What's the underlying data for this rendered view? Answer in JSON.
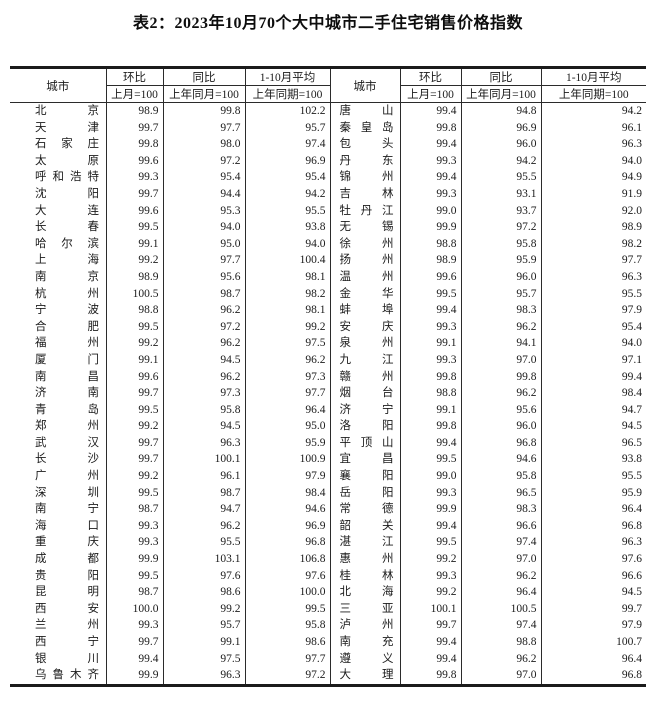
{
  "title": "表2：2023年10月70个大中城市二手住宅销售价格指数",
  "header": {
    "city": "城市",
    "mom": "环比",
    "yoy": "同比",
    "avg": "1-10月平均",
    "mom_base": "上月=100",
    "yoy_base": "上年同月=100",
    "avg_base": "上年同期=100"
  },
  "left_rows": [
    {
      "city": "北京",
      "mom": "98.9",
      "yoy": "99.8",
      "avg": "102.2"
    },
    {
      "city": "天津",
      "mom": "99.7",
      "yoy": "97.7",
      "avg": "95.7"
    },
    {
      "city": "石家庄",
      "mom": "99.8",
      "yoy": "98.0",
      "avg": "97.4"
    },
    {
      "city": "太原",
      "mom": "99.6",
      "yoy": "97.2",
      "avg": "96.9"
    },
    {
      "city": "呼和浩特",
      "mom": "99.3",
      "yoy": "95.4",
      "avg": "95.4"
    },
    {
      "city": "沈阳",
      "mom": "99.7",
      "yoy": "94.4",
      "avg": "94.2"
    },
    {
      "city": "大连",
      "mom": "99.6",
      "yoy": "95.3",
      "avg": "95.5"
    },
    {
      "city": "长春",
      "mom": "99.5",
      "yoy": "94.0",
      "avg": "93.8"
    },
    {
      "city": "哈尔滨",
      "mom": "99.1",
      "yoy": "95.0",
      "avg": "94.0"
    },
    {
      "city": "上海",
      "mom": "99.2",
      "yoy": "97.7",
      "avg": "100.4"
    },
    {
      "city": "南京",
      "mom": "98.9",
      "yoy": "95.6",
      "avg": "98.1"
    },
    {
      "city": "杭州",
      "mom": "100.5",
      "yoy": "98.7",
      "avg": "98.2"
    },
    {
      "city": "宁波",
      "mom": "98.8",
      "yoy": "96.2",
      "avg": "98.1"
    },
    {
      "city": "合肥",
      "mom": "99.5",
      "yoy": "97.2",
      "avg": "99.2"
    },
    {
      "city": "福州",
      "mom": "99.2",
      "yoy": "96.2",
      "avg": "97.5"
    },
    {
      "city": "厦门",
      "mom": "99.1",
      "yoy": "94.5",
      "avg": "96.2"
    },
    {
      "city": "南昌",
      "mom": "99.6",
      "yoy": "96.2",
      "avg": "97.3"
    },
    {
      "city": "济南",
      "mom": "99.7",
      "yoy": "97.3",
      "avg": "97.7"
    },
    {
      "city": "青岛",
      "mom": "99.5",
      "yoy": "95.8",
      "avg": "96.4"
    },
    {
      "city": "郑州",
      "mom": "99.2",
      "yoy": "94.5",
      "avg": "95.0"
    },
    {
      "city": "武汉",
      "mom": "99.7",
      "yoy": "96.3",
      "avg": "95.9"
    },
    {
      "city": "长沙",
      "mom": "99.7",
      "yoy": "100.1",
      "avg": "100.9"
    },
    {
      "city": "广州",
      "mom": "99.2",
      "yoy": "96.1",
      "avg": "97.9"
    },
    {
      "city": "深圳",
      "mom": "99.5",
      "yoy": "98.7",
      "avg": "98.4"
    },
    {
      "city": "南宁",
      "mom": "98.7",
      "yoy": "94.7",
      "avg": "94.6"
    },
    {
      "city": "海口",
      "mom": "99.3",
      "yoy": "96.2",
      "avg": "96.9"
    },
    {
      "city": "重庆",
      "mom": "99.3",
      "yoy": "95.5",
      "avg": "96.8"
    },
    {
      "city": "成都",
      "mom": "99.9",
      "yoy": "103.1",
      "avg": "106.8"
    },
    {
      "city": "贵阳",
      "mom": "99.5",
      "yoy": "97.6",
      "avg": "97.6"
    },
    {
      "city": "昆明",
      "mom": "98.7",
      "yoy": "98.6",
      "avg": "100.0"
    },
    {
      "city": "西安",
      "mom": "100.0",
      "yoy": "99.2",
      "avg": "99.5"
    },
    {
      "city": "兰州",
      "mom": "99.3",
      "yoy": "95.7",
      "avg": "95.8"
    },
    {
      "city": "西宁",
      "mom": "99.7",
      "yoy": "99.1",
      "avg": "98.6"
    },
    {
      "city": "银川",
      "mom": "99.4",
      "yoy": "97.5",
      "avg": "97.7"
    },
    {
      "city": "乌鲁木齐",
      "mom": "99.9",
      "yoy": "96.3",
      "avg": "97.2"
    }
  ],
  "right_rows": [
    {
      "city": "唐山",
      "mom": "99.4",
      "yoy": "94.8",
      "avg": "94.2"
    },
    {
      "city": "秦皇岛",
      "mom": "99.8",
      "yoy": "96.9",
      "avg": "96.1"
    },
    {
      "city": "包头",
      "mom": "99.4",
      "yoy": "96.0",
      "avg": "96.3"
    },
    {
      "city": "丹东",
      "mom": "99.3",
      "yoy": "94.2",
      "avg": "94.0"
    },
    {
      "city": "锦州",
      "mom": "99.4",
      "yoy": "95.5",
      "avg": "94.9"
    },
    {
      "city": "吉林",
      "mom": "99.3",
      "yoy": "93.1",
      "avg": "91.9"
    },
    {
      "city": "牡丹江",
      "mom": "99.0",
      "yoy": "93.7",
      "avg": "92.0"
    },
    {
      "city": "无锡",
      "mom": "99.9",
      "yoy": "97.2",
      "avg": "98.9"
    },
    {
      "city": "徐州",
      "mom": "98.8",
      "yoy": "95.8",
      "avg": "98.2"
    },
    {
      "city": "扬州",
      "mom": "98.9",
      "yoy": "95.9",
      "avg": "97.7"
    },
    {
      "city": "温州",
      "mom": "99.6",
      "yoy": "96.0",
      "avg": "96.3"
    },
    {
      "city": "金华",
      "mom": "99.5",
      "yoy": "95.7",
      "avg": "95.5"
    },
    {
      "city": "蚌埠",
      "mom": "99.4",
      "yoy": "98.3",
      "avg": "97.9"
    },
    {
      "city": "安庆",
      "mom": "99.3",
      "yoy": "96.2",
      "avg": "95.4"
    },
    {
      "city": "泉州",
      "mom": "99.1",
      "yoy": "94.1",
      "avg": "94.0"
    },
    {
      "city": "九江",
      "mom": "99.3",
      "yoy": "97.0",
      "avg": "97.1"
    },
    {
      "city": "赣州",
      "mom": "99.8",
      "yoy": "99.8",
      "avg": "99.4"
    },
    {
      "city": "烟台",
      "mom": "98.8",
      "yoy": "96.2",
      "avg": "98.4"
    },
    {
      "city": "济宁",
      "mom": "99.1",
      "yoy": "95.6",
      "avg": "94.7"
    },
    {
      "city": "洛阳",
      "mom": "99.8",
      "yoy": "96.0",
      "avg": "94.5"
    },
    {
      "city": "平顶山",
      "mom": "99.4",
      "yoy": "96.8",
      "avg": "96.5"
    },
    {
      "city": "宜昌",
      "mom": "99.5",
      "yoy": "94.6",
      "avg": "93.8"
    },
    {
      "city": "襄阳",
      "mom": "99.0",
      "yoy": "95.8",
      "avg": "95.5"
    },
    {
      "city": "岳阳",
      "mom": "99.3",
      "yoy": "96.5",
      "avg": "95.9"
    },
    {
      "city": "常德",
      "mom": "99.9",
      "yoy": "98.3",
      "avg": "96.4"
    },
    {
      "city": "韶关",
      "mom": "99.4",
      "yoy": "96.6",
      "avg": "96.8"
    },
    {
      "city": "湛江",
      "mom": "99.5",
      "yoy": "97.4",
      "avg": "96.3"
    },
    {
      "city": "惠州",
      "mom": "99.2",
      "yoy": "97.0",
      "avg": "97.6"
    },
    {
      "city": "桂林",
      "mom": "99.3",
      "yoy": "96.2",
      "avg": "96.6"
    },
    {
      "city": "北海",
      "mom": "99.2",
      "yoy": "96.4",
      "avg": "94.5"
    },
    {
      "city": "三亚",
      "mom": "100.1",
      "yoy": "100.5",
      "avg": "99.7"
    },
    {
      "city": "泸州",
      "mom": "99.7",
      "yoy": "97.4",
      "avg": "97.9"
    },
    {
      "city": "南充",
      "mom": "99.4",
      "yoy": "98.8",
      "avg": "100.7"
    },
    {
      "city": "遵义",
      "mom": "99.4",
      "yoy": "96.2",
      "avg": "96.4"
    },
    {
      "city": "大理",
      "mom": "99.8",
      "yoy": "97.0",
      "avg": "96.8"
    }
  ]
}
